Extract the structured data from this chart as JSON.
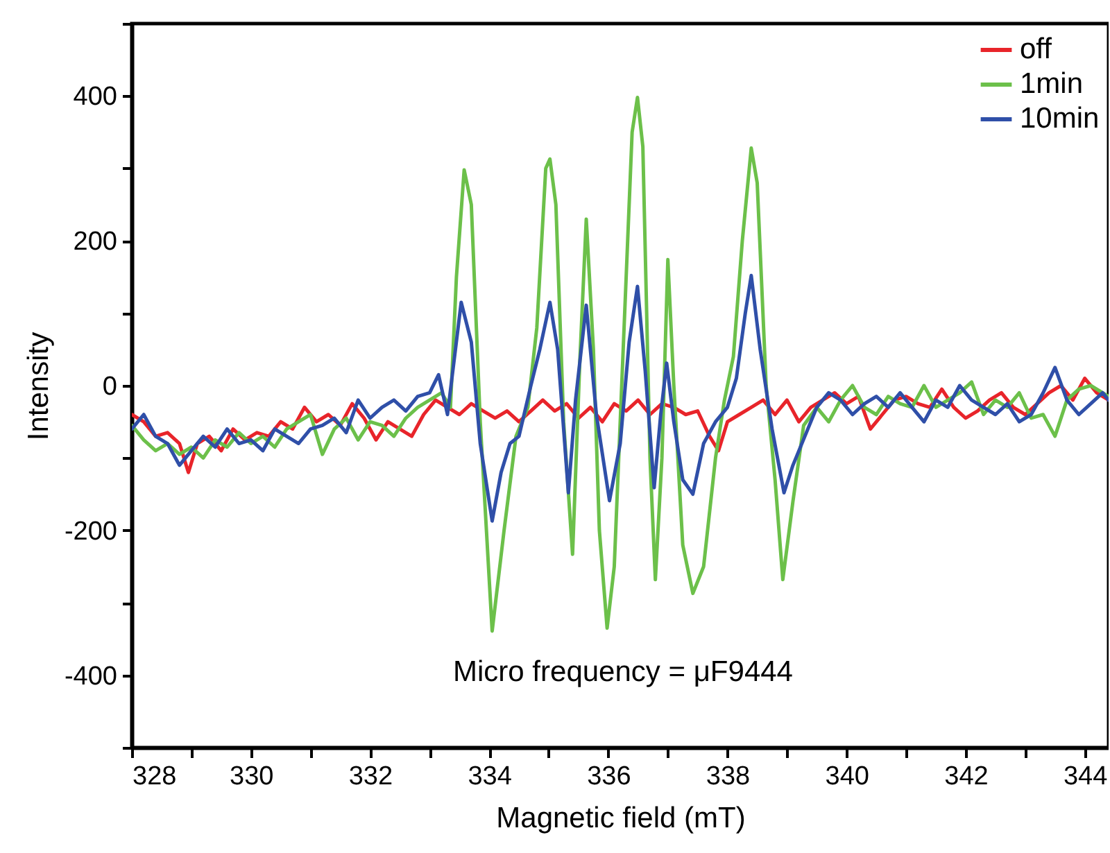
{
  "chart_data": {
    "type": "line",
    "xlabel": "Magnetic field (mT)",
    "ylabel": "Intensity",
    "annotations": [
      "Micro frequency  = μF9444"
    ],
    "xlim": [
      328,
      344.4
    ],
    "xticks": [
      328,
      {
        "value": 329,
        "label": null
      },
      330,
      {
        "value": 331,
        "label": null
      },
      332,
      {
        "value": 333,
        "label": null
      },
      334,
      {
        "value": 335,
        "label": null
      },
      336,
      {
        "value": 337,
        "label": null
      },
      338,
      {
        "value": 339,
        "label": null
      },
      340,
      {
        "value": 341,
        "label": null
      },
      342,
      {
        "value": 343,
        "label": null
      },
      344
    ],
    "ylim": [
      -500,
      500
    ],
    "yticks": [
      {
        "value": -500,
        "label": null
      },
      -400,
      {
        "value": -300,
        "label": null
      },
      -200,
      {
        "value": -100,
        "label": null
      },
      0,
      {
        "value": 100,
        "label": null
      },
      200,
      {
        "value": 300,
        "label": null
      },
      400,
      {
        "value": 500,
        "label": null
      }
    ],
    "grid": false,
    "legend": "top right",
    "marker": "none",
    "line_style": "solid",
    "series": [
      {
        "name": "off",
        "color": "#e8242a",
        "x": [
          328,
          328.2,
          328.4,
          328.6,
          328.8,
          328.95,
          329.1,
          329.3,
          329.5,
          329.7,
          329.9,
          330.1,
          330.3,
          330.5,
          330.7,
          330.9,
          331.1,
          331.3,
          331.5,
          331.7,
          331.9,
          332.1,
          332.3,
          332.5,
          332.7,
          332.9,
          333.1,
          333.3,
          333.5,
          333.7,
          333.9,
          334.1,
          334.3,
          334.5,
          334.7,
          334.9,
          335.1,
          335.3,
          335.5,
          335.7,
          335.9,
          336.1,
          336.3,
          336.5,
          336.7,
          336.9,
          337.1,
          337.3,
          337.5,
          337.7,
          337.85,
          338,
          338.2,
          338.4,
          338.6,
          338.8,
          339,
          339.2,
          339.4,
          339.6,
          339.8,
          340,
          340.2,
          340.4,
          340.6,
          340.8,
          341,
          341.2,
          341.4,
          341.6,
          341.8,
          342,
          342.2,
          342.4,
          342.6,
          342.8,
          343,
          343.2,
          343.4,
          343.6,
          343.8,
          344,
          344.2,
          344.4
        ],
        "values": [
          -40,
          -50,
          -70,
          -65,
          -80,
          -120,
          -80,
          -70,
          -90,
          -60,
          -75,
          -65,
          -70,
          -50,
          -60,
          -30,
          -50,
          -40,
          -55,
          -25,
          -45,
          -75,
          -50,
          -60,
          -70,
          -40,
          -20,
          -30,
          -40,
          -25,
          -35,
          -45,
          -35,
          -50,
          -35,
          -20,
          -35,
          -25,
          -45,
          -30,
          -50,
          -25,
          -35,
          -20,
          -40,
          -25,
          -30,
          -40,
          -35,
          -70,
          -90,
          -50,
          -40,
          -30,
          -20,
          -40,
          -20,
          -50,
          -30,
          -20,
          -10,
          -25,
          -15,
          -60,
          -40,
          -20,
          -15,
          -25,
          -30,
          -5,
          -30,
          -45,
          -35,
          -20,
          -10,
          -30,
          -40,
          -25,
          -10,
          0,
          -20,
          10,
          -10,
          -20
        ]
      },
      {
        "name": "1min",
        "color": "#6cc04a",
        "x": [
          328,
          328.2,
          328.4,
          328.6,
          328.8,
          329,
          329.2,
          329.4,
          329.6,
          329.8,
          330,
          330.2,
          330.4,
          330.6,
          330.8,
          331,
          331.2,
          331.4,
          331.6,
          331.8,
          332,
          332.2,
          332.4,
          332.6,
          332.8,
          333,
          333.2,
          333.35,
          333.45,
          333.58,
          333.7,
          333.85,
          334.05,
          334.25,
          334.45,
          334.65,
          334.8,
          334.95,
          335.02,
          335.12,
          335.25,
          335.4,
          335.52,
          335.63,
          335.75,
          335.85,
          335.98,
          336.1,
          336.25,
          336.4,
          336.49,
          336.58,
          336.7,
          336.79,
          336.9,
          337,
          337.1,
          337.25,
          337.42,
          337.6,
          337.8,
          337.95,
          338.1,
          338.25,
          338.4,
          338.5,
          338.65,
          338.8,
          338.93,
          339.1,
          339.28,
          339.5,
          339.7,
          339.9,
          340.1,
          340.3,
          340.5,
          340.7,
          340.9,
          341.1,
          341.3,
          341.5,
          341.7,
          341.9,
          342.1,
          342.3,
          342.5,
          342.7,
          342.9,
          343.1,
          343.3,
          343.5,
          343.7,
          343.9,
          344.1,
          344.3,
          344.4
        ],
        "values": [
          -55,
          -75,
          -90,
          -80,
          -95,
          -85,
          -100,
          -75,
          -85,
          -65,
          -80,
          -70,
          -85,
          -60,
          -50,
          -40,
          -95,
          -60,
          -45,
          -75,
          -50,
          -55,
          -70,
          -45,
          -30,
          -20,
          -10,
          -30,
          150,
          298,
          250,
          -50,
          -339,
          -200,
          -70,
          -30,
          80,
          300,
          313,
          250,
          -50,
          -233,
          30,
          230,
          50,
          -200,
          -335,
          -250,
          50,
          350,
          398,
          330,
          -100,
          -268,
          -100,
          174,
          0,
          -220,
          -287,
          -250,
          -100,
          -20,
          40,
          200,
          328,
          280,
          0,
          -130,
          -268,
          -160,
          -55,
          -30,
          -50,
          -20,
          0,
          -30,
          -40,
          -15,
          -25,
          -30,
          0,
          -30,
          -20,
          -10,
          5,
          -40,
          -20,
          -30,
          -10,
          -45,
          -40,
          -70,
          -20,
          -5,
          0,
          -10,
          -15
        ]
      },
      {
        "name": "10min",
        "color": "#2f4fa8",
        "x": [
          328,
          328.2,
          328.4,
          328.6,
          328.8,
          329,
          329.2,
          329.4,
          329.6,
          329.8,
          330,
          330.2,
          330.4,
          330.6,
          330.8,
          331,
          331.2,
          331.4,
          331.6,
          331.8,
          332,
          332.2,
          332.4,
          332.6,
          332.8,
          333,
          333.15,
          333.3,
          333.53,
          333.7,
          333.85,
          334.05,
          334.2,
          334.35,
          334.5,
          334.7,
          334.85,
          335.02,
          335.15,
          335.33,
          335.45,
          335.63,
          335.8,
          336.02,
          336.2,
          336.35,
          336.49,
          336.62,
          336.77,
          336.88,
          336.98,
          337.1,
          337.25,
          337.42,
          337.6,
          337.8,
          338,
          338.15,
          338.3,
          338.4,
          338.55,
          338.75,
          338.95,
          339.1,
          339.3,
          339.5,
          339.7,
          339.9,
          340.1,
          340.3,
          340.5,
          340.7,
          340.9,
          341.1,
          341.3,
          341.5,
          341.7,
          341.9,
          342.1,
          342.3,
          342.5,
          342.7,
          342.9,
          343.1,
          343.3,
          343.5,
          343.7,
          343.9,
          344.1,
          344.3,
          344.4
        ],
        "values": [
          -60,
          -40,
          -70,
          -80,
          -110,
          -90,
          -70,
          -85,
          -60,
          -80,
          -75,
          -90,
          -60,
          -70,
          -80,
          -60,
          -55,
          -45,
          -65,
          -20,
          -45,
          -30,
          -20,
          -35,
          -15,
          -10,
          15,
          -40,
          115,
          60,
          -80,
          -187,
          -120,
          -80,
          -70,
          0,
          50,
          115,
          50,
          -148,
          -20,
          111,
          -40,
          -159,
          -80,
          60,
          137,
          20,
          -141,
          -40,
          31,
          -50,
          -130,
          -150,
          -80,
          -50,
          -30,
          10,
          100,
          152,
          50,
          -60,
          -148,
          -110,
          -70,
          -30,
          -10,
          -20,
          -40,
          -25,
          -15,
          -30,
          -10,
          -30,
          -50,
          -20,
          -30,
          0,
          -20,
          -30,
          -40,
          -25,
          -50,
          -40,
          -10,
          25,
          -20,
          -40,
          -25,
          -10,
          -20
        ]
      }
    ]
  }
}
